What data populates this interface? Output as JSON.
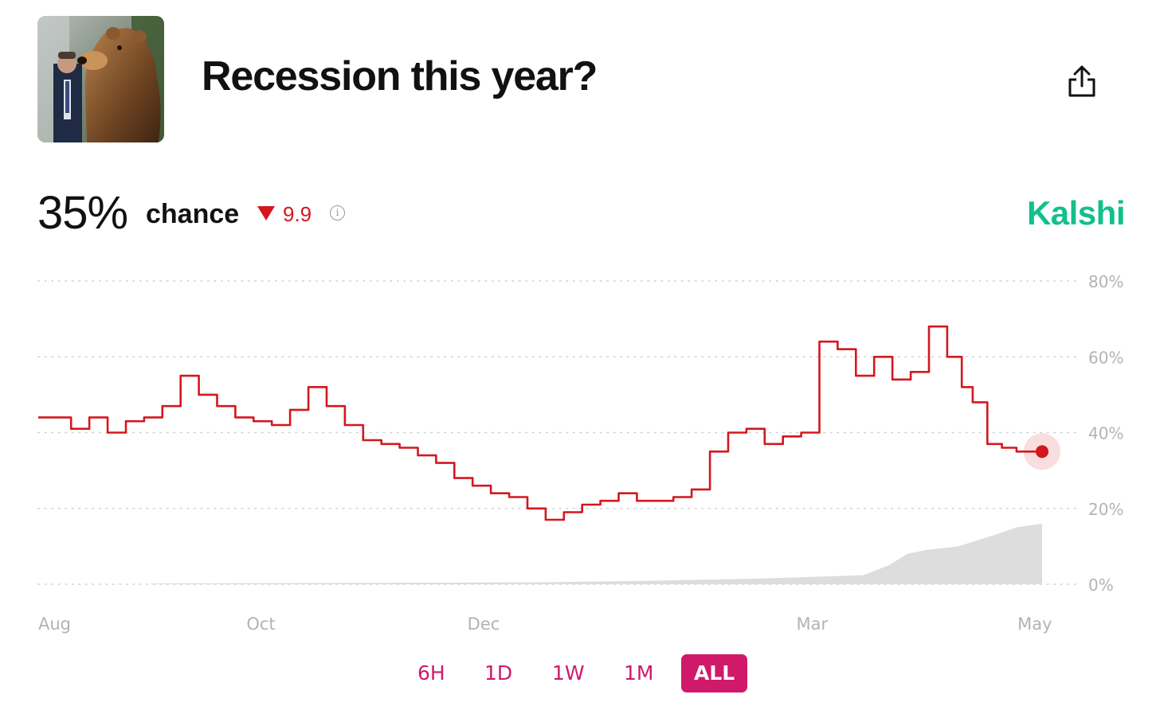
{
  "market": {
    "title": "Recession this year?",
    "probability": "35%",
    "chance_label": "chance",
    "change": "9.9",
    "change_direction": "down",
    "source": "Kalshi"
  },
  "colors": {
    "line": "#d4171e",
    "brand": "#11c08a",
    "accent": "#d1196a",
    "volume": "#dddddd"
  },
  "icons": [
    "share-icon",
    "info-icon",
    "down-triangle-icon"
  ],
  "ranges": [
    {
      "label": "6H",
      "active": false
    },
    {
      "label": "1D",
      "active": false
    },
    {
      "label": "1W",
      "active": false
    },
    {
      "label": "1M",
      "active": false
    },
    {
      "label": "ALL",
      "active": true
    }
  ],
  "chart_data": {
    "type": "line",
    "ylim": [
      0,
      80
    ],
    "yticks": [
      0,
      20,
      40,
      60,
      80
    ],
    "ytick_labels": [
      "0%",
      "20%",
      "40%",
      "60%",
      "80%"
    ],
    "y_unit": "%",
    "xtick_labels": [
      "Aug",
      "Oct",
      "Dec",
      "Mar",
      "May"
    ],
    "xticks": [
      "2024-08-01",
      "2024-10-01",
      "2024-12-01",
      "2025-03-01",
      "2025-05-01"
    ],
    "grid": true,
    "series": [
      {
        "x": [
          "2024-08-01",
          "2024-08-05",
          "2024-08-10",
          "2024-08-15",
          "2024-08-20",
          "2024-08-25",
          "2024-08-30",
          "2024-09-04",
          "2024-09-09",
          "2024-09-14",
          "2024-09-19",
          "2024-09-24",
          "2024-09-29",
          "2024-10-04",
          "2024-10-09",
          "2024-10-14",
          "2024-10-19",
          "2024-10-24",
          "2024-10-29",
          "2024-11-03",
          "2024-11-08",
          "2024-11-13",
          "2024-11-18",
          "2024-11-23",
          "2024-11-28",
          "2024-12-03",
          "2024-12-08",
          "2024-12-13",
          "2024-12-18",
          "2024-12-23",
          "2024-12-28",
          "2025-01-02",
          "2025-01-07",
          "2025-01-12",
          "2025-01-17",
          "2025-01-22",
          "2025-01-27",
          "2025-02-01",
          "2025-02-06",
          "2025-02-11",
          "2025-02-16",
          "2025-02-21",
          "2025-02-26",
          "2025-03-03",
          "2025-03-08",
          "2025-03-13",
          "2025-03-18",
          "2025-03-23",
          "2025-03-28",
          "2025-04-02",
          "2025-04-07",
          "2025-04-11",
          "2025-04-14",
          "2025-04-18",
          "2025-04-22",
          "2025-04-26",
          "2025-04-30",
          "2025-05-03"
        ],
        "values": [
          44,
          44,
          41,
          44,
          40,
          43,
          44,
          47,
          55,
          50,
          47,
          44,
          43,
          42,
          46,
          52,
          47,
          42,
          38,
          37,
          36,
          34,
          32,
          28,
          26,
          24,
          23,
          20,
          17,
          19,
          21,
          22,
          24,
          22,
          22,
          23,
          25,
          35,
          40,
          41,
          37,
          39,
          40,
          64,
          62,
          55,
          60,
          54,
          56,
          68,
          60,
          52,
          48,
          37,
          36,
          35,
          35,
          35
        ]
      }
    ],
    "volume": {
      "x": [
        "2024-09-01",
        "2024-12-15",
        "2025-01-15",
        "2025-02-15",
        "2025-03-15",
        "2025-03-22",
        "2025-03-27",
        "2025-04-01",
        "2025-04-10",
        "2025-04-20",
        "2025-04-26",
        "2025-05-03"
      ],
      "values": [
        0.2,
        0.5,
        0.9,
        1.5,
        2.4,
        5,
        8,
        9,
        10,
        13,
        15,
        16
      ]
    }
  }
}
